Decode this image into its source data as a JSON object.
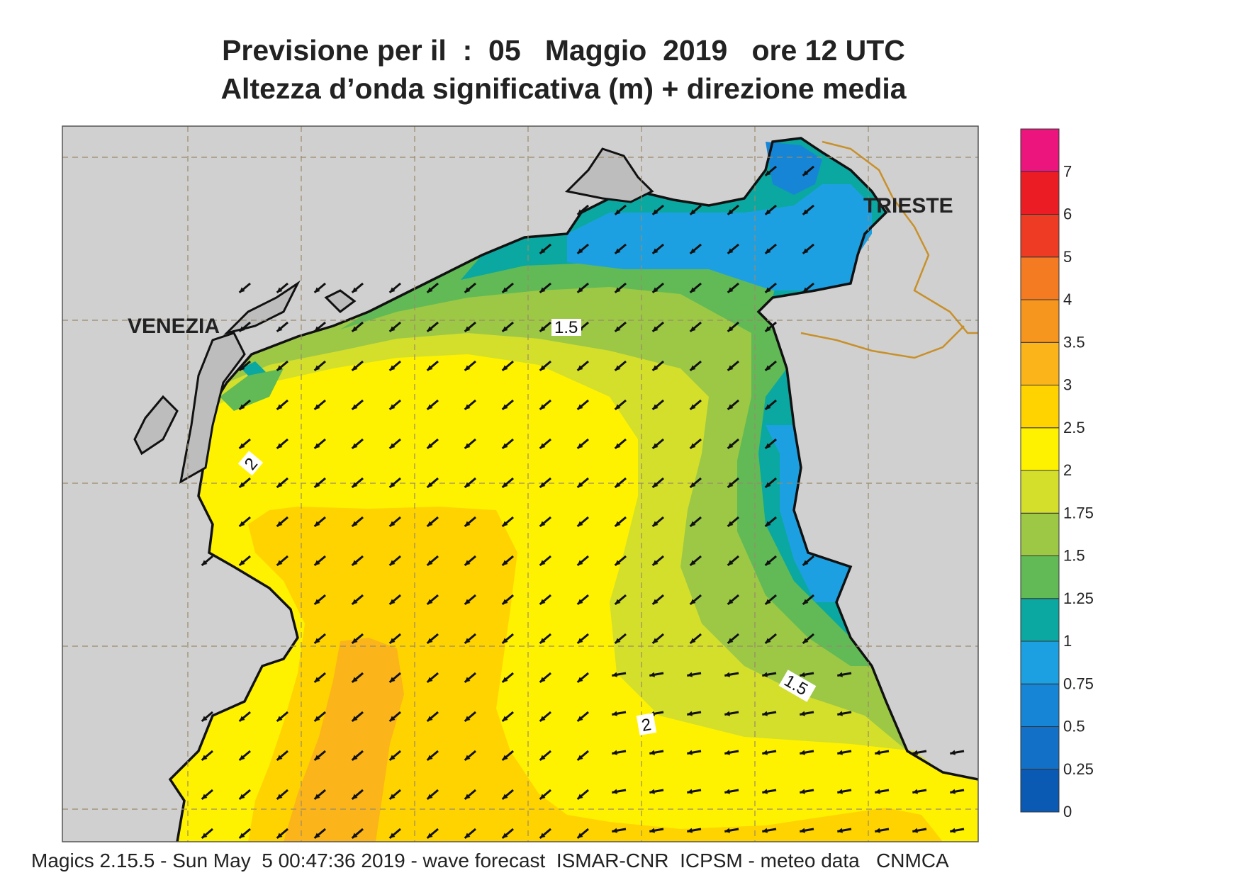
{
  "title": {
    "line1": "Previsione per il  :  05   Maggio  2019   ore 12 UTC",
    "line2": "Altezza d’onda significativa (m) + direzione media"
  },
  "footer": "Magics 2.15.5 - Sun May  5 00:47:36 2019 - wave forecast  ISMAR-CNR  ICPSM - meteo data   CNMCA",
  "map": {
    "cities": [
      {
        "name": "VENEZIA"
      },
      {
        "name": "TRIESTE"
      }
    ],
    "contour_labels": [
      "1.5",
      "2",
      "1.5",
      "2"
    ],
    "wave_direction": "toward south-west (arrows)",
    "grid": true
  },
  "colorbar": {
    "labels": [
      "0",
      "0.25",
      "0.5",
      "0.75",
      "1",
      "1.25",
      "1.5",
      "1.75",
      "2",
      "2.5",
      "3",
      "3.5",
      "4",
      "5",
      "6",
      "7"
    ],
    "colors": [
      "#0a5ab4",
      "#1270c7",
      "#1785d6",
      "#1da0e2",
      "#0aa8a0",
      "#61ba55",
      "#9cc846",
      "#d4df2c",
      "#fff200",
      "#ffd300",
      "#fbb419",
      "#f7961e",
      "#f57b22",
      "#ee3b24",
      "#ec1c24",
      "#ec157d"
    ],
    "unit": "m"
  }
}
